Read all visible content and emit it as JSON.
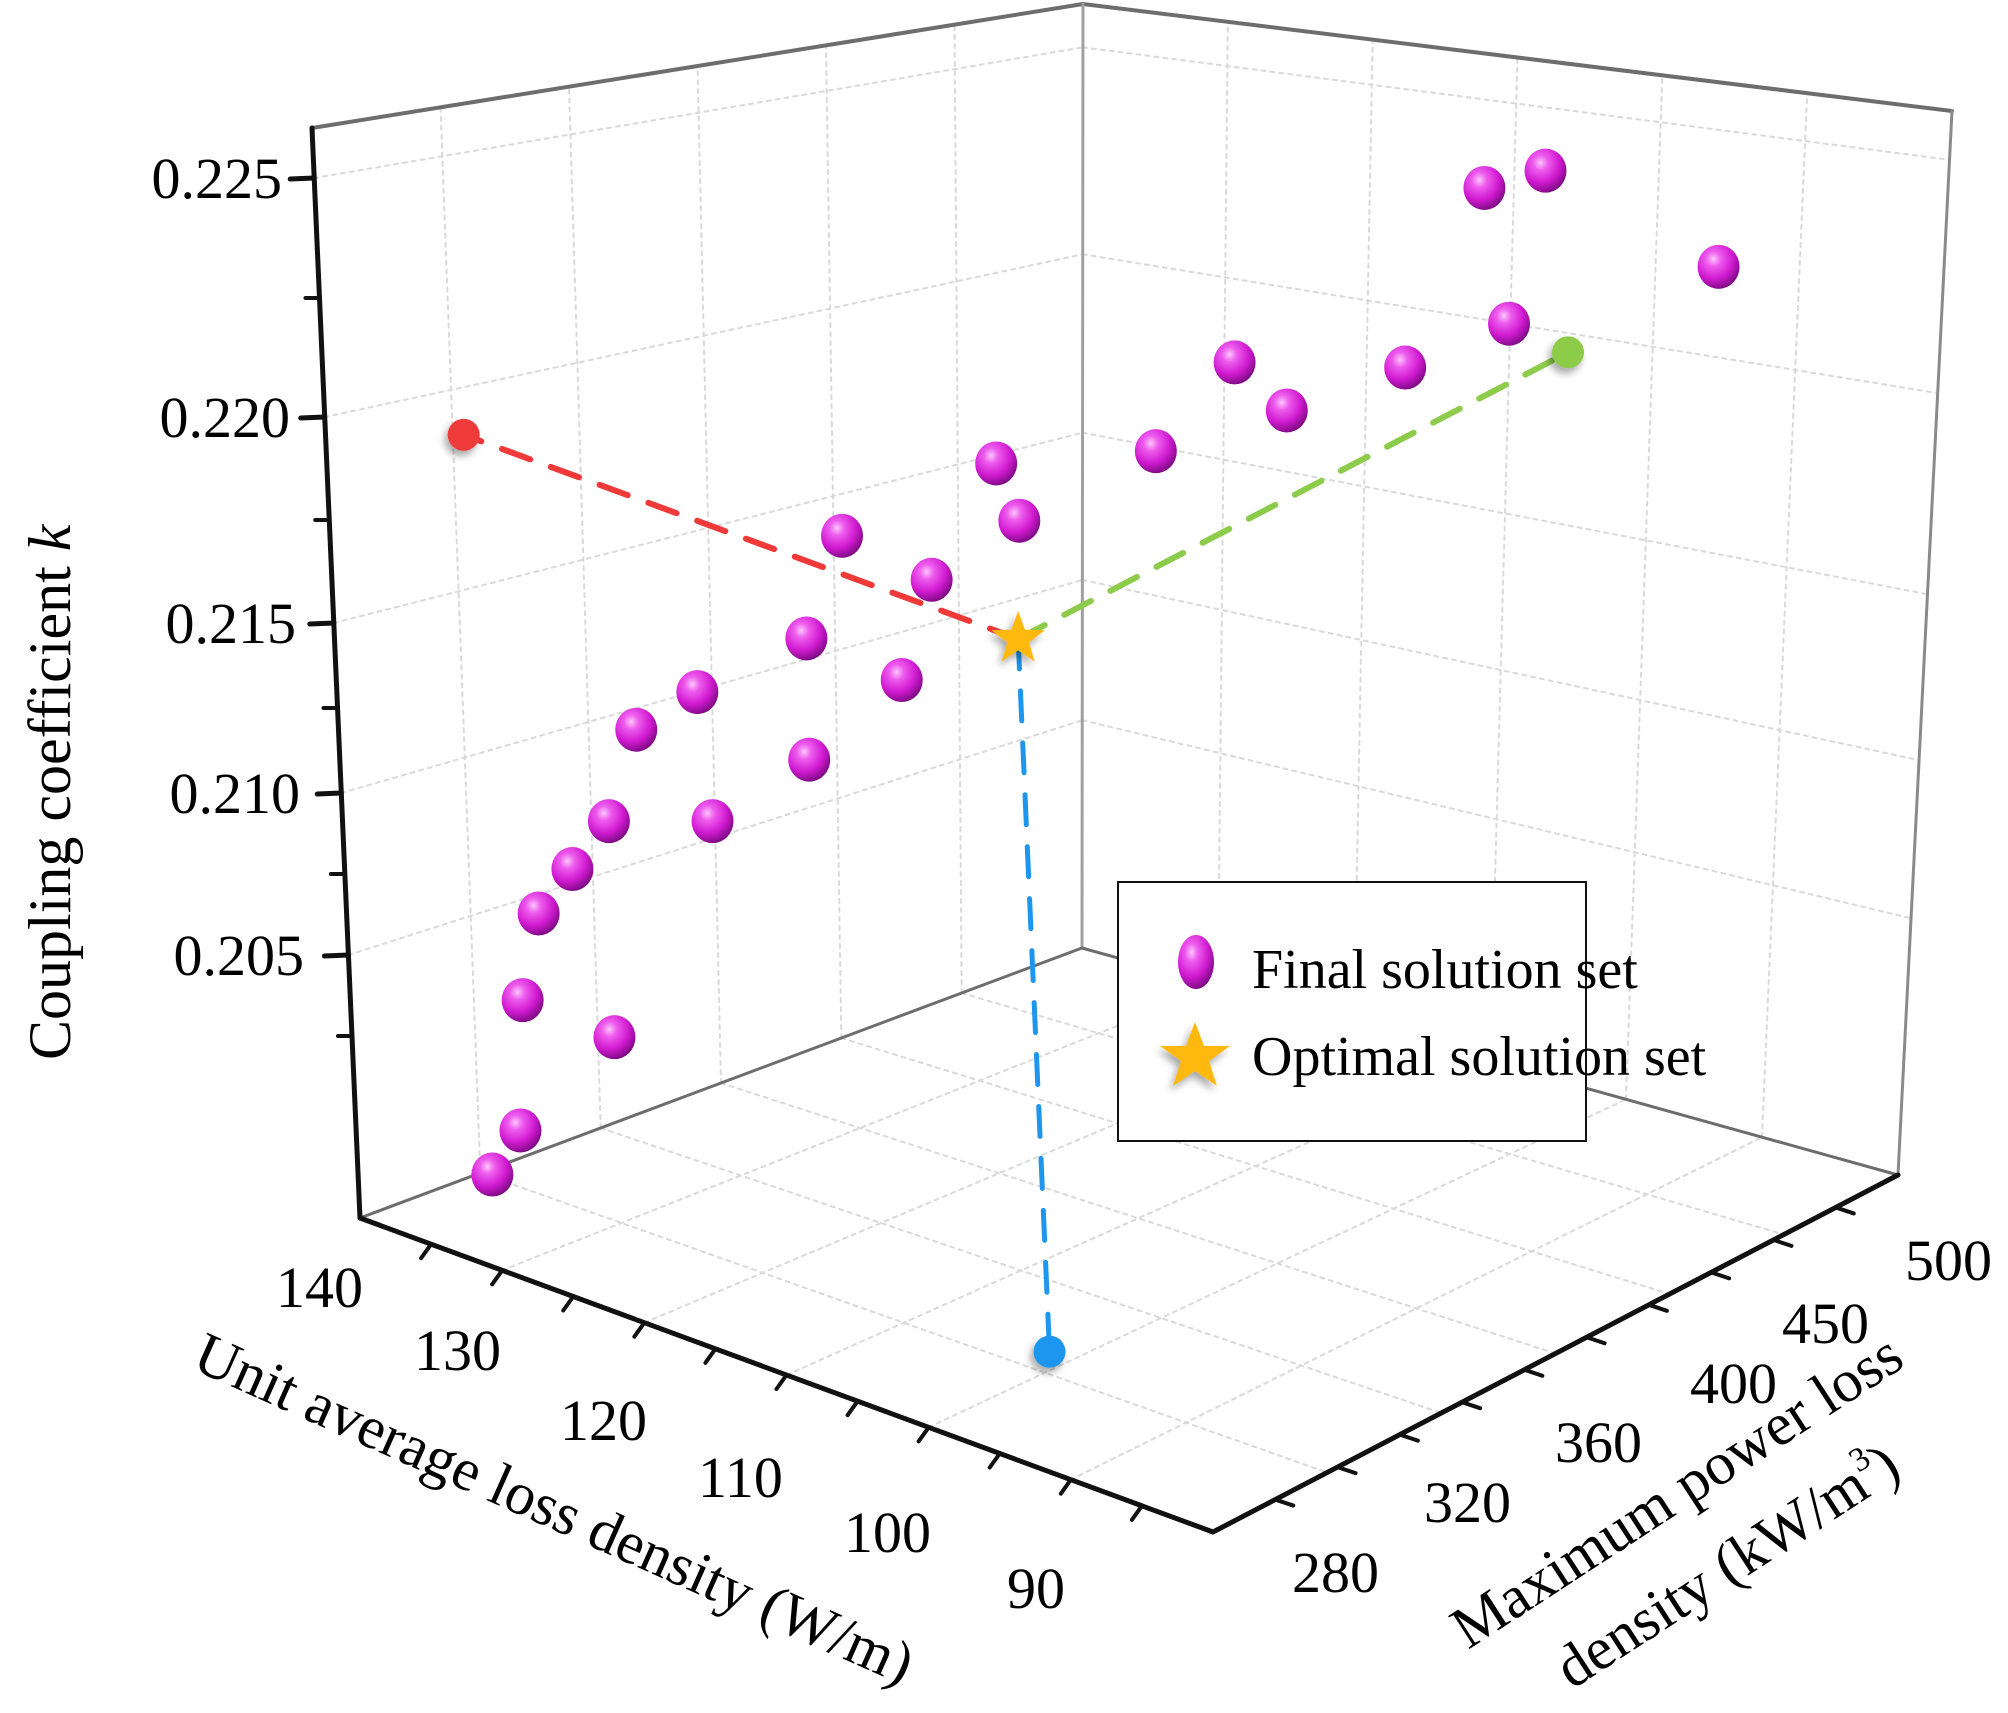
{
  "chart_data": {
    "type": "scatter",
    "projection": "3d",
    "title": "",
    "axes": {
      "x": {
        "label": "Unit average loss density (W/m)",
        "range": [
          85,
          143
        ],
        "ticks": [
          90,
          100,
          110,
          120,
          130,
          140
        ],
        "tick_labels": [
          "90",
          "100",
          "110",
          "120",
          "130",
          "140"
        ],
        "minor_ticks": [
          85,
          95,
          105,
          115,
          125,
          135
        ]
      },
      "y": {
        "label_line1": "Maximum power loss",
        "label_line2": "density (kW/m",
        "label_sup": "3",
        "label_close": ")",
        "range": [
          265,
          515
        ],
        "ticks": [
          280,
          320,
          360,
          400,
          450,
          500
        ],
        "tick_labels": [
          "280",
          "320",
          "360",
          "400",
          "450",
          "500"
        ]
      },
      "z": {
        "label": "Coupling coefficient ",
        "label_italic": "k",
        "range": [
          0.2025,
          0.2265
        ],
        "ticks": [
          0.205,
          0.21,
          0.215,
          0.22,
          0.225
        ],
        "tick_labels": [
          "0.205",
          "0.210",
          "0.215",
          "0.220",
          "0.225"
        ]
      }
    },
    "grid": true,
    "legend": {
      "position": "center-right",
      "entries": [
        {
          "label": "Final solution set",
          "marker": "sphere"
        },
        {
          "label": "Optimal solution set",
          "marker": "star"
        }
      ]
    },
    "series": [
      {
        "name": "Final solution set",
        "color": "#d81ed8",
        "points": [
          {
            "x": 103.8,
            "y": 480,
            "k": 0.2231
          },
          {
            "x": 103.4,
            "y": 500,
            "k": 0.2229
          },
          {
            "x": 92.7,
            "y": 505,
            "k": 0.2219
          },
          {
            "x": 96.7,
            "y": 450,
            "k": 0.2219
          },
          {
            "x": 106.1,
            "y": 400,
            "k": 0.2215
          },
          {
            "x": 98.2,
            "y": 420,
            "k": 0.2217
          },
          {
            "x": 100.7,
            "y": 390,
            "k": 0.2214
          },
          {
            "x": 106.0,
            "y": 370,
            "k": 0.2205
          },
          {
            "x": 113.2,
            "y": 350,
            "k": 0.22
          },
          {
            "x": 107.9,
            "y": 330,
            "k": 0.22
          },
          {
            "x": 120.2,
            "y": 330,
            "k": 0.2182
          },
          {
            "x": 112.2,
            "y": 320,
            "k": 0.2185
          },
          {
            "x": 119.1,
            "y": 310,
            "k": 0.2167
          },
          {
            "x": 110.7,
            "y": 300,
            "k": 0.2171
          },
          {
            "x": 126.8,
            "y": 310,
            "k": 0.2146
          },
          {
            "x": 129.2,
            "y": 300,
            "k": 0.2138
          },
          {
            "x": 115.4,
            "y": 290,
            "k": 0.2151
          },
          {
            "x": 130.4,
            "y": 295,
            "k": 0.2118
          },
          {
            "x": 121.3,
            "y": 285,
            "k": 0.2132
          },
          {
            "x": 132.1,
            "y": 290,
            "k": 0.2107
          },
          {
            "x": 133.6,
            "y": 285,
            "k": 0.2097
          },
          {
            "x": 134.0,
            "y": 280,
            "k": 0.2079
          },
          {
            "x": 126.8,
            "y": 275,
            "k": 0.2081
          },
          {
            "x": 133.0,
            "y": 272,
            "k": 0.2054
          },
          {
            "x": 134.3,
            "y": 268,
            "k": 0.2044
          }
        ]
      },
      {
        "name": "Optimal solution set",
        "color": "#ffb80b",
        "points": [
          {
            "x": 105.3,
            "y": 314.3,
            "k": 0.2182
          }
        ]
      }
    ],
    "projections": [
      {
        "name": "x-wall projection",
        "color": "#f03a3a",
        "onto": "x-max"
      },
      {
        "name": "y-wall projection",
        "color": "#8ccc4a",
        "onto": "y-max"
      },
      {
        "name": "floor projection",
        "color": "#1e96ee",
        "onto": "z-min"
      }
    ]
  }
}
